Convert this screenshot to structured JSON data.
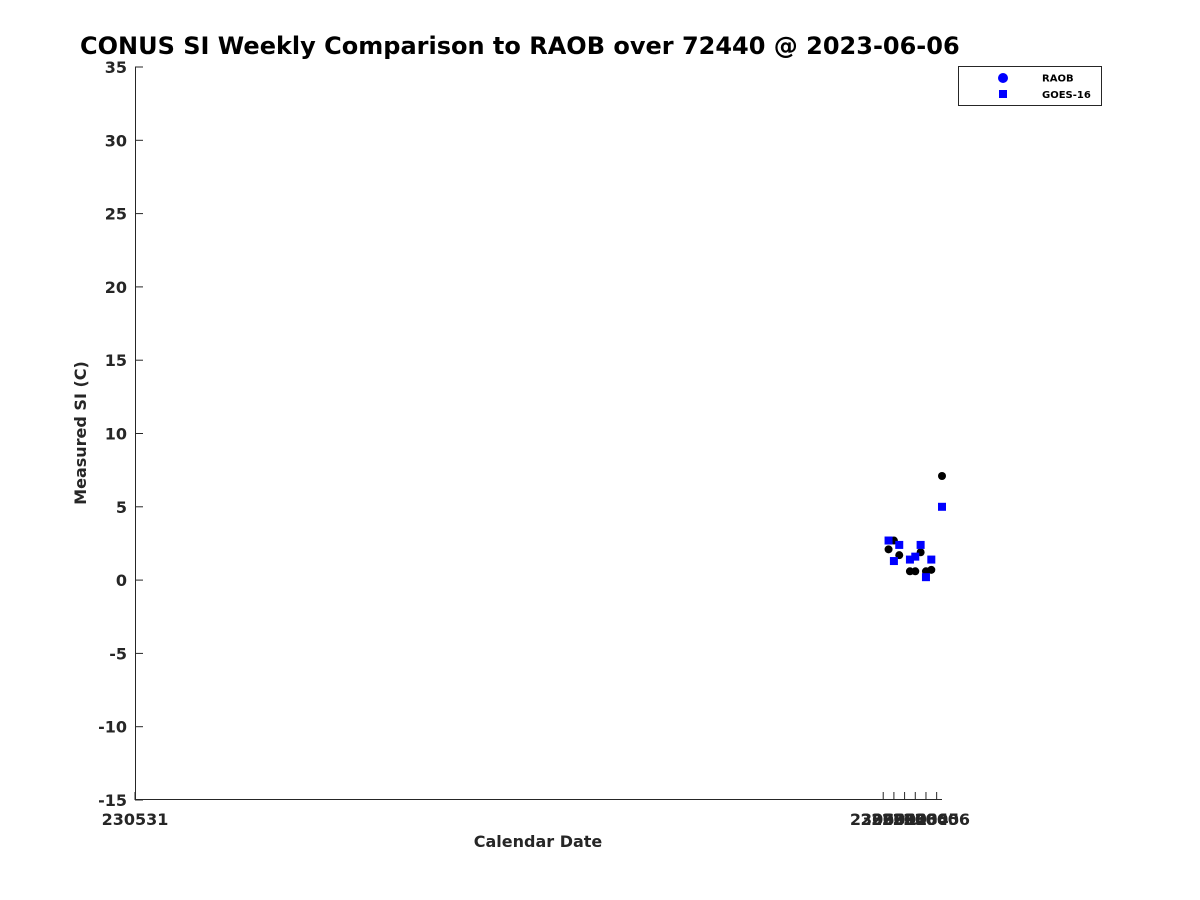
{
  "chart_data": {
    "type": "scatter",
    "title": "CONUS SI Weekly Comparison to RAOB over 72440 @ 2023-06-06",
    "xlabel": "Calendar Date",
    "ylabel": "Measured SI (C)",
    "xlim": [
      230531,
      230606.5
    ],
    "ylim": [
      -15,
      35
    ],
    "x_ticks": [
      230531,
      230601,
      230602,
      230603,
      230604,
      230605,
      230606
    ],
    "x_tick_labels": [
      "230531",
      "230601",
      "230602",
      "230603",
      "230604",
      "230605",
      "230606"
    ],
    "y_ticks": [
      -15,
      -10,
      -5,
      0,
      5,
      10,
      15,
      20,
      25,
      30,
      35
    ],
    "y_tick_labels": [
      "-15",
      "-10",
      "-5",
      "0",
      "5",
      "10",
      "15",
      "20",
      "25",
      "30",
      "35"
    ],
    "grid": false,
    "legend_position": "top-right",
    "series": [
      {
        "name": "RAOB",
        "marker": "circle",
        "color": "#000000",
        "legend_color": "#0000ff",
        "points": [
          {
            "x": 230601.5,
            "y": 2.1
          },
          {
            "x": 230602.0,
            "y": 2.7
          },
          {
            "x": 230602.5,
            "y": 1.7
          },
          {
            "x": 230603.5,
            "y": 0.6
          },
          {
            "x": 230604.0,
            "y": 0.6
          },
          {
            "x": 230604.5,
            "y": 1.9
          },
          {
            "x": 230605.0,
            "y": 0.6
          },
          {
            "x": 230605.5,
            "y": 0.7
          },
          {
            "x": 230606.5,
            "y": 7.1
          }
        ]
      },
      {
        "name": "GOES-16",
        "marker": "square",
        "color": "#0000ff",
        "legend_color": "#0000ff",
        "points": [
          {
            "x": 230601.5,
            "y": 2.7
          },
          {
            "x": 230602.0,
            "y": 1.3
          },
          {
            "x": 230602.5,
            "y": 2.4
          },
          {
            "x": 230603.5,
            "y": 1.4
          },
          {
            "x": 230604.0,
            "y": 1.6
          },
          {
            "x": 230604.5,
            "y": 2.4
          },
          {
            "x": 230605.0,
            "y": 0.2
          },
          {
            "x": 230605.5,
            "y": 1.4
          },
          {
            "x": 230606.5,
            "y": 5.0
          }
        ]
      }
    ]
  }
}
